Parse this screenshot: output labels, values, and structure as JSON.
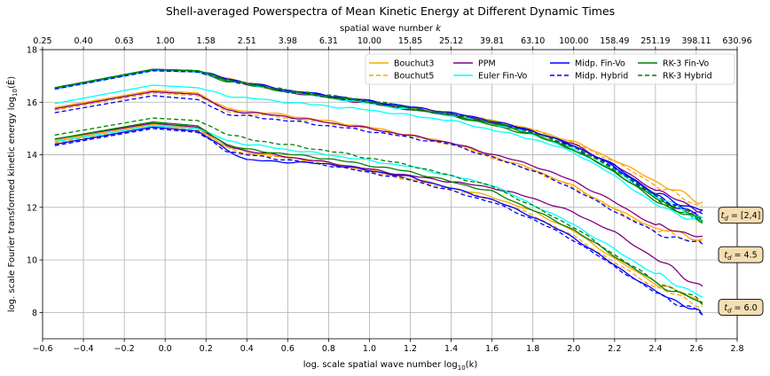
{
  "chart_data": {
    "type": "line",
    "title": "Shell-averaged Powerspectra of Mean Kinetic Energy at Different Dynamic Times",
    "xlabel": "log. scale spatial wave number log₁₀(k)",
    "ylabel": "log. scale Fourier transformed kinetic energy log₁₀(Ê)",
    "top_xlabel": "spatial wave number k",
    "xlim": [
      -0.6,
      2.8
    ],
    "ylim": [
      7,
      18
    ],
    "xticks": [
      -0.6,
      -0.4,
      -0.2,
      0.0,
      0.2,
      0.4,
      0.6,
      0.8,
      1.0,
      1.2,
      1.4,
      1.6,
      1.8,
      2.0,
      2.2,
      2.4,
      2.6,
      2.8
    ],
    "xtick_labels": [
      "−0.6",
      "−0.4",
      "−0.2",
      "0.0",
      "0.2",
      "0.4",
      "0.6",
      "0.8",
      "1.0",
      "1.2",
      "1.4",
      "1.6",
      "1.8",
      "2.0",
      "2.2",
      "2.4",
      "2.6",
      "2.8"
    ],
    "yticks": [
      8,
      10,
      12,
      14,
      16,
      18
    ],
    "ytick_labels": [
      "8",
      "10",
      "12",
      "14",
      "16",
      "18"
    ],
    "top_ticks": [
      -0.6,
      -0.4,
      -0.2,
      0.0,
      0.2,
      0.4,
      0.6,
      0.8,
      1.0,
      1.2,
      1.4,
      1.6,
      1.8,
      2.0,
      2.2,
      2.4,
      2.6,
      2.8
    ],
    "top_tick_labels": [
      "0.25",
      "0.40",
      "0.63",
      "1.00",
      "1.58",
      "2.51",
      "3.98",
      "6.31",
      "10.00",
      "15.85",
      "25.12",
      "39.81",
      "63.10",
      "100.00",
      "158.49",
      "251.19",
      "398.11",
      "630.96"
    ],
    "grid": true,
    "legend_placement": "top-right",
    "legend": [
      {
        "name": "Bouchut3",
        "color": "#ffa500",
        "dash": false
      },
      {
        "name": "Bouchut5",
        "color": "#ffa500",
        "dash": true
      },
      {
        "name": "PPM",
        "color": "#800080",
        "dash": false
      },
      {
        "name": "Euler Fin-Vo",
        "color": "#00ffff",
        "dash": false
      },
      {
        "name": "Midp. Fin-Vo",
        "color": "#0000ff",
        "dash": false
      },
      {
        "name": "Midp. Hybrid",
        "color": "#0000ff",
        "dash": true
      },
      {
        "name": "RK-3  Fin-Vo",
        "color": "#008000",
        "dash": false
      },
      {
        "name": "RK-3  Hybrid",
        "color": "#008000",
        "dash": true
      }
    ],
    "annotations": [
      {
        "text": "t_d = [2,4]",
        "sub": "d",
        "value": "= [2,4]",
        "at_y": 11.7
      },
      {
        "text": "t_d = 4.5",
        "sub": "d",
        "value": "= 4.5",
        "at_y": 10.2
      },
      {
        "text": "t_d = 6.0",
        "sub": "d",
        "value": "= 6.0",
        "at_y": 8.2
      }
    ],
    "series": [
      {
        "name": "Bouchut3",
        "group": "t_d = [2,4]",
        "color": "#ffa500",
        "dash": false,
        "x": [
          -0.54,
          -0.06,
          0.16,
          0.3,
          0.6,
          1.0,
          1.4,
          1.8,
          2.0,
          2.2,
          2.4,
          2.6,
          2.63
        ],
        "y": [
          15.8,
          16.45,
          16.35,
          15.75,
          15.5,
          15.05,
          14.45,
          13.45,
          12.8,
          11.95,
          11.2,
          10.85,
          10.8
        ]
      },
      {
        "name": "Bouchut5",
        "group": "t_d = [2,4]",
        "color": "#ffa500",
        "dash": true,
        "x": [
          -0.54,
          -0.06,
          0.16,
          0.3,
          0.6,
          1.0,
          1.4,
          1.8,
          2.0,
          2.2,
          2.4,
          2.6,
          2.63
        ],
        "y": [
          15.7,
          16.35,
          16.25,
          15.65,
          15.4,
          15.0,
          14.4,
          13.4,
          12.75,
          11.9,
          11.1,
          10.75,
          10.7
        ]
      },
      {
        "name": "PPM",
        "group": "t_d = [2,4]",
        "color": "#800080",
        "dash": false,
        "x": [
          -0.54,
          -0.06,
          0.16,
          0.3,
          0.6,
          1.0,
          1.4,
          1.8,
          2.0,
          2.2,
          2.4,
          2.6,
          2.63
        ],
        "y": [
          15.75,
          16.4,
          16.3,
          15.7,
          15.45,
          15.0,
          14.45,
          13.6,
          13.0,
          12.2,
          11.3,
          10.95,
          10.9
        ]
      },
      {
        "name": "Euler Fin-Vo",
        "group": "t_d = [2,4]",
        "color": "#00ffff",
        "dash": false,
        "x": [
          -0.54,
          -0.06,
          0.16,
          0.3,
          0.6,
          1.0,
          1.4,
          1.8,
          2.0,
          2.2,
          2.4,
          2.6,
          2.63
        ],
        "y": [
          15.95,
          16.65,
          16.55,
          16.25,
          16.0,
          15.7,
          15.3,
          14.6,
          14.1,
          13.2,
          12.1,
          11.5,
          11.4
        ]
      },
      {
        "name": "Midp. Fin-Vo",
        "group": "t_d = [2,4]",
        "color": "#0000ff",
        "dash": false,
        "x": [
          -0.54,
          -0.06,
          0.16,
          0.3,
          0.6,
          1.0,
          1.4,
          1.8,
          2.0,
          2.2,
          2.4,
          2.6,
          2.63
        ],
        "y": [
          16.55,
          17.25,
          17.2,
          16.85,
          16.45,
          16.05,
          15.55,
          14.9,
          14.35,
          13.55,
          12.45,
          11.7,
          11.6
        ]
      },
      {
        "name": "Midp. Hybrid",
        "group": "t_d = [2,4]",
        "color": "#0000ff",
        "dash": true,
        "x": [
          -0.54,
          -0.06,
          0.16,
          0.3,
          0.6,
          1.0,
          1.4,
          1.8,
          2.0,
          2.2,
          2.4,
          2.6,
          2.63
        ],
        "y": [
          15.6,
          16.25,
          16.1,
          15.55,
          15.3,
          14.9,
          14.4,
          13.4,
          12.7,
          11.85,
          11.05,
          10.65,
          10.6
        ]
      },
      {
        "name": "RK-3  Fin-Vo",
        "group": "t_d = [2,4]",
        "color": "#008000",
        "dash": false,
        "x": [
          -0.54,
          -0.06,
          0.16,
          0.3,
          0.6,
          1.0,
          1.4,
          1.8,
          2.0,
          2.2,
          2.4,
          2.6,
          2.63
        ],
        "y": [
          16.55,
          17.25,
          17.15,
          16.8,
          16.4,
          16.0,
          15.5,
          14.75,
          14.2,
          13.35,
          12.25,
          11.55,
          11.4
        ]
      },
      {
        "name": "RK-3  Hybrid",
        "group": "t_d = [2,4]",
        "color": "#008000",
        "dash": true,
        "x": [
          -0.54,
          -0.06,
          0.16,
          0.3,
          0.6,
          1.0,
          1.4,
          1.8,
          2.0,
          2.2,
          2.4,
          2.6,
          2.63
        ],
        "y": [
          16.55,
          17.25,
          17.2,
          16.85,
          16.45,
          16.05,
          15.55,
          14.85,
          14.3,
          13.45,
          12.35,
          11.6,
          11.5
        ]
      },
      {
        "name": "Bouchut3",
        "group": "t_d = 4.5",
        "color": "#ffa500",
        "dash": false,
        "x": [
          -0.54,
          -0.06,
          0.16,
          0.3,
          0.4,
          0.8,
          1.2,
          1.6,
          1.8,
          2.0,
          2.2,
          2.4,
          2.6,
          2.63
        ],
        "y": [
          14.55,
          15.15,
          15.0,
          14.3,
          14.1,
          13.7,
          13.1,
          12.4,
          11.85,
          11.1,
          10.05,
          9.1,
          8.5,
          8.4
        ]
      },
      {
        "name": "Bouchut5",
        "group": "t_d = 4.5",
        "color": "#ffa500",
        "dash": true,
        "x": [
          -0.54,
          -0.06,
          0.16,
          0.3,
          0.4,
          0.8,
          1.2,
          1.6,
          1.8,
          2.0,
          2.2,
          2.4,
          2.6,
          2.63
        ],
        "y": [
          14.45,
          15.05,
          14.95,
          14.25,
          14.05,
          13.65,
          13.05,
          12.3,
          11.7,
          10.9,
          9.9,
          8.95,
          8.35,
          8.25
        ]
      },
      {
        "name": "PPM",
        "group": "t_d = 4.5",
        "color": "#800080",
        "dash": false,
        "x": [
          -0.54,
          -0.06,
          0.16,
          0.3,
          0.4,
          0.8,
          1.2,
          1.6,
          1.8,
          2.0,
          2.2,
          2.4,
          2.6,
          2.63
        ],
        "y": [
          14.6,
          15.2,
          15.05,
          14.35,
          14.15,
          13.7,
          13.2,
          12.75,
          12.35,
          11.8,
          11.05,
          10.05,
          9.1,
          9.0
        ]
      },
      {
        "name": "Euler Fin-Vo",
        "group": "t_d = 4.5",
        "color": "#00ffff",
        "dash": false,
        "x": [
          -0.54,
          -0.06,
          0.16,
          0.3,
          0.4,
          0.8,
          1.2,
          1.6,
          1.8,
          2.0,
          2.2,
          2.4,
          2.6,
          2.63
        ],
        "y": [
          14.5,
          15.1,
          15.0,
          14.55,
          14.4,
          14.0,
          13.55,
          12.85,
          12.1,
          11.35,
          10.4,
          9.45,
          8.75,
          8.6
        ]
      },
      {
        "name": "Midp. Fin-Vo",
        "group": "t_d = 4.5",
        "color": "#0000ff",
        "dash": false,
        "x": [
          -0.54,
          -0.06,
          0.16,
          0.3,
          0.4,
          0.8,
          1.2,
          1.6,
          1.8,
          2.0,
          2.2,
          2.4,
          2.6,
          2.63
        ],
        "y": [
          14.4,
          15.05,
          14.9,
          14.2,
          13.8,
          13.65,
          13.15,
          12.3,
          11.65,
          10.85,
          9.8,
          8.8,
          8.1,
          7.9
        ]
      },
      {
        "name": "Midp. Hybrid",
        "group": "t_d = 4.5",
        "color": "#0000ff",
        "dash": true,
        "x": [
          -0.54,
          -0.06,
          0.16,
          0.3,
          0.4,
          0.8,
          1.2,
          1.6,
          1.8,
          2.0,
          2.2,
          2.4,
          2.6,
          2.63
        ],
        "y": [
          14.35,
          15.0,
          14.85,
          14.15,
          14.0,
          13.6,
          13.05,
          12.2,
          11.55,
          10.75,
          9.75,
          8.75,
          8.05,
          7.9
        ]
      },
      {
        "name": "RK-3  Fin-Vo",
        "group": "t_d = 4.5",
        "color": "#008000",
        "dash": false,
        "x": [
          -0.54,
          -0.06,
          0.16,
          0.3,
          0.4,
          0.8,
          1.2,
          1.6,
          1.8,
          2.0,
          2.2,
          2.4,
          2.6,
          2.63
        ],
        "y": [
          14.6,
          15.25,
          15.1,
          14.4,
          14.2,
          13.85,
          13.35,
          12.6,
          11.9,
          11.15,
          10.15,
          9.15,
          8.45,
          8.3
        ]
      },
      {
        "name": "RK-3  Hybrid",
        "group": "t_d = 4.5",
        "color": "#008000",
        "dash": true,
        "x": [
          -0.54,
          -0.06,
          0.16,
          0.3,
          0.4,
          0.8,
          1.2,
          1.6,
          1.8,
          2.0,
          2.2,
          2.4,
          2.6,
          2.63
        ],
        "y": [
          14.75,
          15.4,
          15.3,
          14.8,
          14.6,
          14.15,
          13.6,
          12.8,
          12.05,
          11.25,
          10.2,
          9.2,
          8.5,
          8.35
        ]
      },
      {
        "name": "Bouchut3",
        "group": "t_d = 6.0",
        "color": "#ffa500",
        "dash": false,
        "x": [
          -0.54,
          -0.06,
          0.16,
          0.3,
          0.6,
          1.0,
          1.4,
          1.6,
          1.8,
          2.0,
          2.2,
          2.4,
          2.6,
          2.63
        ],
        "y": [
          16.55,
          17.25,
          17.2,
          16.9,
          16.4,
          16.0,
          15.55,
          15.3,
          14.95,
          14.5,
          13.8,
          13.0,
          12.25,
          12.2
        ]
      },
      {
        "name": "Bouchut5",
        "group": "t_d = 6.0",
        "color": "#ffa500",
        "dash": true,
        "x": [
          -0.54,
          -0.06,
          0.16,
          0.3,
          0.6,
          1.0,
          1.4,
          1.6,
          1.8,
          2.0,
          2.2,
          2.4,
          2.6,
          2.63
        ],
        "y": [
          16.55,
          17.25,
          17.2,
          16.9,
          16.4,
          16.0,
          15.55,
          15.3,
          14.95,
          14.45,
          13.75,
          12.85,
          12.1,
          12.05
        ]
      },
      {
        "name": "PPM",
        "group": "t_d = 6.0",
        "color": "#800080",
        "dash": false,
        "x": [
          -0.54,
          -0.06,
          0.16,
          0.3,
          0.6,
          1.0,
          1.4,
          1.6,
          1.8,
          2.0,
          2.2,
          2.4,
          2.6,
          2.63
        ],
        "y": [
          16.5,
          17.2,
          17.15,
          16.85,
          16.4,
          15.95,
          15.5,
          15.25,
          14.9,
          14.4,
          13.6,
          12.65,
          11.95,
          11.9
        ]
      },
      {
        "name": "Euler Fin-Vo",
        "group": "t_d = 6.0",
        "color": "#00ffff",
        "dash": false,
        "x": [
          -0.54,
          -0.06,
          0.16,
          0.3,
          0.6,
          1.0,
          1.4,
          1.6,
          1.8,
          2.0,
          2.2,
          2.4,
          2.6,
          2.63
        ],
        "y": [
          16.5,
          17.2,
          17.15,
          16.85,
          16.4,
          15.95,
          15.5,
          15.2,
          14.8,
          14.2,
          13.4,
          12.4,
          11.7,
          11.6
        ]
      },
      {
        "name": "Midp. Fin-Vo",
        "group": "t_d = 6.0",
        "color": "#0000ff",
        "dash": false,
        "x": [
          -0.54,
          -0.06,
          0.16,
          0.3,
          0.6,
          1.0,
          1.4,
          1.6,
          1.8,
          2.0,
          2.2,
          2.4,
          2.6,
          2.63
        ],
        "y": [
          16.55,
          17.25,
          17.2,
          16.9,
          16.45,
          16.05,
          15.6,
          15.3,
          14.9,
          14.35,
          13.6,
          12.5,
          11.95,
          11.9
        ]
      },
      {
        "name": "Midp. Hybrid",
        "group": "t_d = 6.0",
        "color": "#0000ff",
        "dash": true,
        "x": [
          -0.54,
          -0.06,
          0.16,
          0.3,
          0.6,
          1.0,
          1.4,
          1.6,
          1.8,
          2.0,
          2.2,
          2.4,
          2.6,
          2.63
        ],
        "y": [
          16.5,
          17.2,
          17.15,
          16.85,
          16.4,
          16.0,
          15.55,
          15.25,
          14.85,
          14.3,
          13.5,
          12.4,
          11.8,
          11.75
        ]
      },
      {
        "name": "RK-3  Fin-Vo",
        "group": "t_d = 6.0",
        "color": "#008000",
        "dash": false,
        "x": [
          -0.54,
          -0.06,
          0.16,
          0.3,
          0.6,
          1.0,
          1.4,
          1.6,
          1.8,
          2.0,
          2.2,
          2.4,
          2.6,
          2.63
        ],
        "y": [
          16.55,
          17.25,
          17.2,
          16.85,
          16.4,
          16.0,
          15.5,
          15.2,
          14.8,
          14.2,
          13.35,
          12.35,
          11.55,
          11.45
        ]
      },
      {
        "name": "RK-3  Hybrid",
        "group": "t_d = 6.0",
        "color": "#008000",
        "dash": true,
        "x": [
          -0.54,
          -0.06,
          0.16,
          0.3,
          0.6,
          1.0,
          1.4,
          1.6,
          1.8,
          2.0,
          2.2,
          2.4,
          2.6,
          2.63
        ],
        "y": [
          16.55,
          17.25,
          17.2,
          16.85,
          16.45,
          16.05,
          15.55,
          15.25,
          14.85,
          14.3,
          13.45,
          12.45,
          11.65,
          11.55
        ]
      }
    ]
  }
}
